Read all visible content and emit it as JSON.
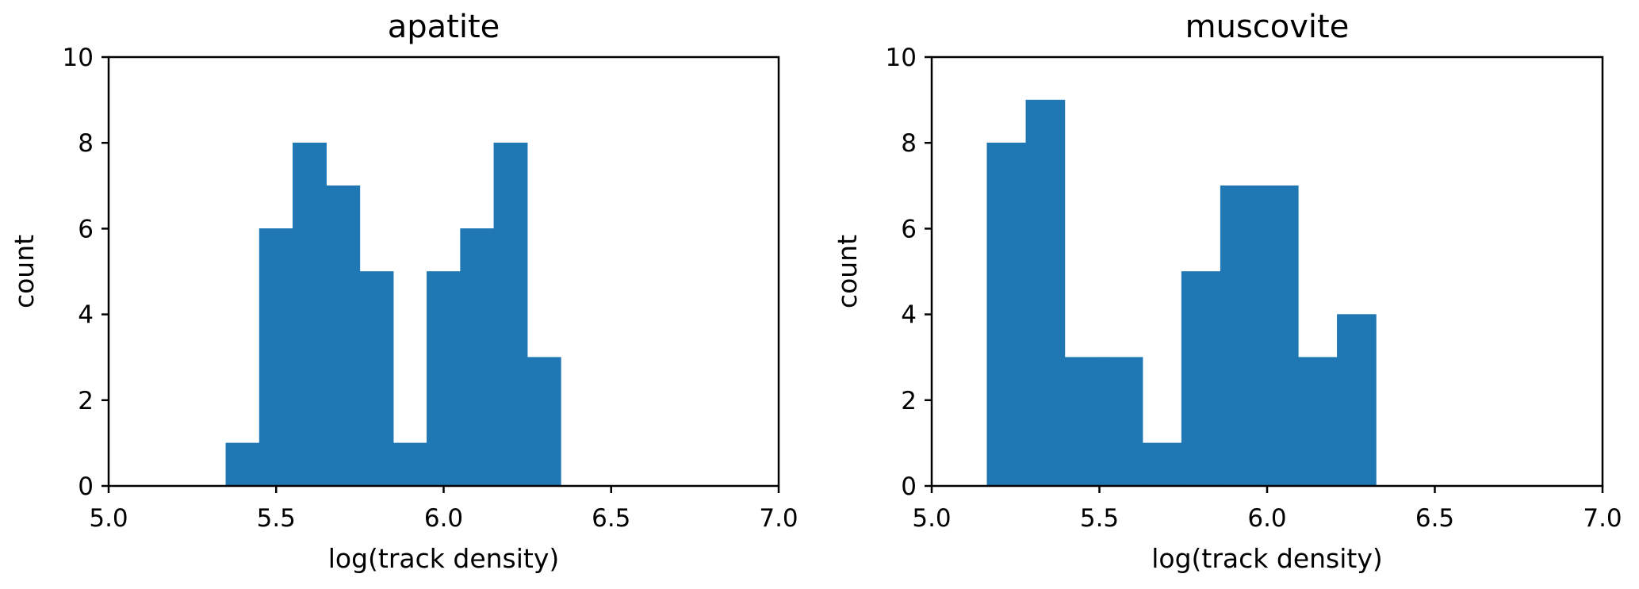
{
  "colors": {
    "bar": "#1f77b4",
    "axis": "#000000",
    "background": "#ffffff"
  },
  "chart_data": [
    {
      "type": "bar",
      "title": "apatite",
      "xlabel": "log(track density)",
      "ylabel": "count",
      "xlim": [
        5.0,
        7.0
      ],
      "ylim": [
        0,
        10
      ],
      "xticks": [
        5.0,
        5.5,
        6.0,
        6.5,
        7.0
      ],
      "xtick_labels": [
        "5.0",
        "5.5",
        "6.0",
        "6.5",
        "7.0"
      ],
      "yticks": [
        0,
        2,
        4,
        6,
        8,
        10
      ],
      "ytick_labels": [
        "0",
        "2",
        "4",
        "6",
        "8",
        "10"
      ],
      "grid": false,
      "bin_edges": [
        5.35,
        5.45,
        5.55,
        5.65,
        5.75,
        5.85,
        5.95,
        6.05,
        6.15,
        6.25,
        6.35
      ],
      "counts": [
        1,
        6,
        8,
        7,
        5,
        1,
        5,
        6,
        8,
        3
      ]
    },
    {
      "type": "bar",
      "title": "muscovite",
      "xlabel": "log(track density)",
      "ylabel": "count",
      "xlim": [
        5.0,
        7.0
      ],
      "ylim": [
        0,
        10
      ],
      "xticks": [
        5.0,
        5.5,
        6.0,
        6.5,
        7.0
      ],
      "xtick_labels": [
        "5.0",
        "5.5",
        "6.0",
        "6.5",
        "7.0"
      ],
      "yticks": [
        0,
        2,
        4,
        6,
        8,
        10
      ],
      "ytick_labels": [
        "0",
        "2",
        "4",
        "6",
        "8",
        "10"
      ],
      "grid": false,
      "bin_edges": [
        5.165,
        5.281,
        5.397,
        5.513,
        5.629,
        5.745,
        5.861,
        5.977,
        6.093,
        6.209,
        6.325
      ],
      "counts": [
        8,
        9,
        3,
        3,
        1,
        5,
        7,
        7,
        3,
        4
      ]
    }
  ]
}
